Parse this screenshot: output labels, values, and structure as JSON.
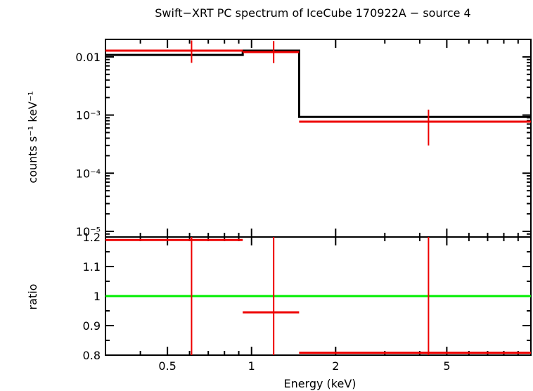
{
  "chart_data": [
    {
      "type": "line",
      "panel": "spectrum",
      "title": "Swift−XRT PC spectrum of IceCube 170922A − source 4",
      "xlabel": "",
      "ylabel": "counts s⁻¹ keV⁻¹",
      "x_scale": "log",
      "y_scale": "log",
      "xlim": [
        0.3,
        10
      ],
      "ylim": [
        8e-06,
        0.02
      ],
      "y_ticks": [
        {
          "value": 0.01,
          "label": "0.01"
        },
        {
          "value": 0.001,
          "label": "10⁻³"
        },
        {
          "value": 0.0001,
          "label": "10⁻⁴"
        },
        {
          "value": 1e-05,
          "label": "10⁻⁵"
        }
      ],
      "model": {
        "color": "#000000",
        "steps": [
          {
            "x0": 0.3,
            "x1": 0.93,
            "y": 0.0108
          },
          {
            "x0": 0.93,
            "x1": 1.48,
            "y": 0.0128
          },
          {
            "x0": 1.48,
            "x1": 10.0,
            "y": 0.00093
          }
        ]
      },
      "data": {
        "color": "#ee0000",
        "points": [
          {
            "x": 0.61,
            "xlo": 0.3,
            "xhi": 0.93,
            "y": 0.0128,
            "ylo": 0.0079,
            "yhi": 0.0192
          },
          {
            "x": 1.2,
            "xlo": 0.93,
            "xhi": 1.48,
            "y": 0.0121,
            "ylo": 0.0078,
            "yhi": 0.0188
          },
          {
            "x": 4.3,
            "xlo": 1.48,
            "xhi": 10.0,
            "y": 0.00077,
            "ylo": 0.0003,
            "yhi": 0.00124
          }
        ]
      }
    },
    {
      "type": "line",
      "panel": "ratio",
      "xlabel": "Energy (keV)",
      "ylabel": "ratio",
      "x_scale": "log",
      "xlim": [
        0.3,
        10
      ],
      "ylim": [
        0.8,
        1.2
      ],
      "x_ticks": [
        {
          "value": 0.5,
          "label": "0.5"
        },
        {
          "value": 1,
          "label": "1"
        },
        {
          "value": 2,
          "label": "2"
        },
        {
          "value": 5,
          "label": "5"
        }
      ],
      "y_ticks": [
        {
          "value": 0.8,
          "label": "0.8"
        },
        {
          "value": 0.9,
          "label": "0.9"
        },
        {
          "value": 1.0,
          "label": "1"
        },
        {
          "value": 1.1,
          "label": "1.1"
        },
        {
          "value": 1.2,
          "label": "1.2"
        }
      ],
      "reference_line": {
        "y": 1.0,
        "color": "#00ee00"
      },
      "data": {
        "color": "#ee0000",
        "points": [
          {
            "x": 0.61,
            "xlo": 0.3,
            "xhi": 0.93,
            "y": 1.19,
            "ylo": 0.79,
            "yhi": 1.21
          },
          {
            "x": 1.2,
            "xlo": 0.93,
            "xhi": 1.48,
            "y": 0.945,
            "ylo": 0.79,
            "yhi": 1.21
          },
          {
            "x": 4.3,
            "xlo": 1.48,
            "xhi": 10.0,
            "y": 0.808,
            "ylo": 0.79,
            "yhi": 1.21
          }
        ]
      }
    }
  ]
}
